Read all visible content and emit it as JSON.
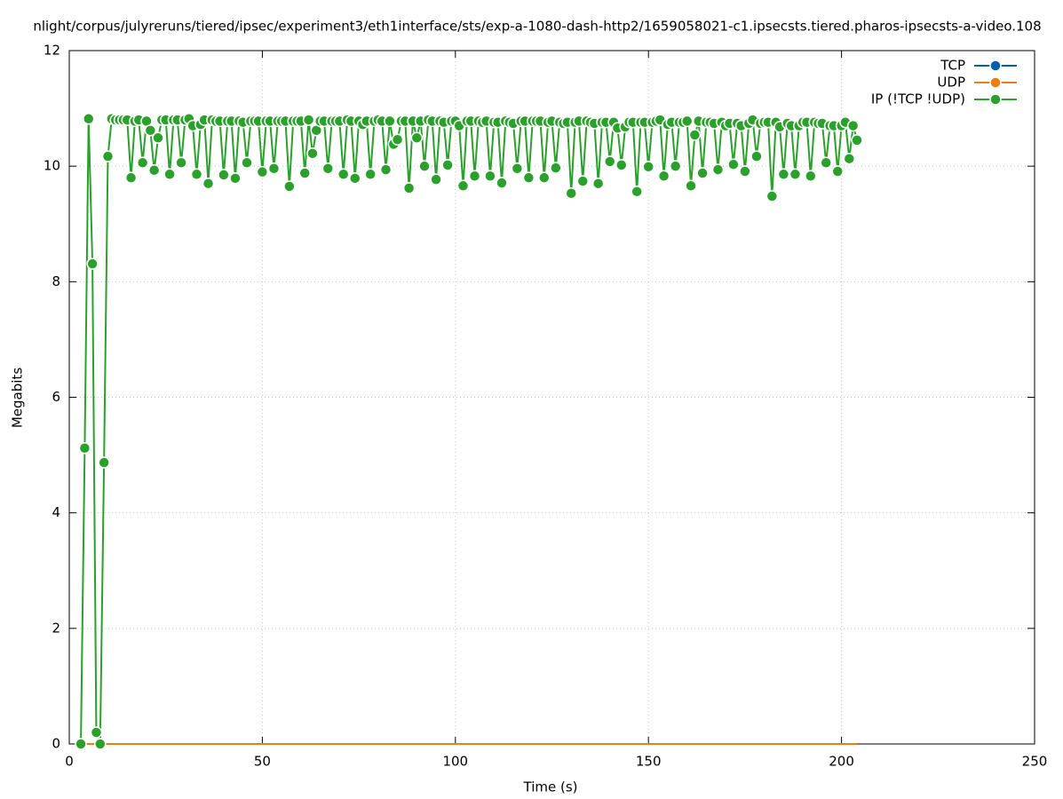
{
  "chart_data": {
    "type": "line",
    "title": "nlight/corpus/julyreruns/tiered/ipsec/experiment3/eth1interface/sts/exp-a-1080-dash-http2/1659058021-c1.ipsecsts.tiered.pharos-ipsecsts-a-video.108",
    "xlabel": "Time (s)",
    "ylabel": "Megabits",
    "xlim": [
      0,
      250
    ],
    "xticks": [
      0,
      50,
      100,
      150,
      200,
      250
    ],
    "ylim": [
      0,
      12
    ],
    "yticks": [
      0,
      2,
      4,
      6,
      8,
      10,
      12
    ],
    "grid": true,
    "legend": "top-right",
    "x": [
      3,
      4,
      5,
      6,
      7,
      8,
      9,
      10,
      11,
      12,
      13,
      14,
      15,
      16,
      17,
      18,
      19,
      20,
      21,
      22,
      23,
      24,
      25,
      26,
      27,
      28,
      29,
      30,
      31,
      32,
      33,
      34,
      35,
      36,
      37,
      38,
      39,
      40,
      41,
      42,
      43,
      44,
      45,
      46,
      47,
      48,
      49,
      50,
      51,
      52,
      53,
      54,
      55,
      56,
      57,
      58,
      59,
      60,
      61,
      62,
      63,
      64,
      65,
      66,
      67,
      68,
      69,
      70,
      71,
      72,
      73,
      74,
      75,
      76,
      77,
      78,
      79,
      80,
      81,
      82,
      83,
      84,
      85,
      86,
      87,
      88,
      89,
      90,
      91,
      92,
      93,
      94,
      95,
      96,
      97,
      98,
      99,
      100,
      101,
      102,
      103,
      104,
      105,
      106,
      107,
      108,
      109,
      110,
      111,
      112,
      113,
      114,
      115,
      116,
      117,
      118,
      119,
      120,
      121,
      122,
      123,
      124,
      125,
      126,
      127,
      128,
      129,
      130,
      131,
      132,
      133,
      134,
      135,
      136,
      137,
      138,
      139,
      140,
      141,
      142,
      143,
      144,
      145,
      146,
      147,
      148,
      149,
      150,
      151,
      152,
      153,
      154,
      155,
      156,
      157,
      158,
      159,
      160,
      161,
      162,
      163,
      164,
      165,
      166,
      167,
      168,
      169,
      170,
      171,
      172,
      173,
      174,
      175,
      176,
      177,
      178,
      179,
      180,
      181,
      182,
      183,
      184,
      185,
      186,
      187,
      188,
      189,
      190,
      191,
      192,
      193,
      194,
      195,
      196,
      197,
      198,
      199,
      200,
      201,
      202,
      203,
      204
    ],
    "series": [
      {
        "name": "TCP",
        "color": "#0060ad",
        "points": false,
        "values": [
          0,
          0,
          0,
          0,
          0,
          0,
          0,
          0,
          0,
          0,
          0,
          0,
          0,
          0,
          0,
          0,
          0,
          0,
          0,
          0,
          0,
          0,
          0,
          0,
          0,
          0,
          0,
          0,
          0,
          0,
          0,
          0,
          0,
          0,
          0,
          0,
          0,
          0,
          0,
          0,
          0,
          0,
          0,
          0,
          0,
          0,
          0,
          0,
          0,
          0,
          0,
          0,
          0,
          0,
          0,
          0,
          0,
          0,
          0,
          0,
          0,
          0,
          0,
          0,
          0,
          0,
          0,
          0,
          0,
          0,
          0,
          0,
          0,
          0,
          0,
          0,
          0,
          0,
          0,
          0,
          0,
          0,
          0,
          0,
          0,
          0,
          0,
          0,
          0,
          0,
          0,
          0,
          0,
          0,
          0,
          0,
          0,
          0,
          0,
          0,
          0,
          0,
          0,
          0,
          0,
          0,
          0,
          0,
          0,
          0,
          0,
          0,
          0,
          0,
          0,
          0,
          0,
          0,
          0,
          0,
          0,
          0,
          0,
          0,
          0,
          0,
          0,
          0,
          0,
          0,
          0,
          0,
          0,
          0,
          0,
          0,
          0,
          0,
          0,
          0,
          0,
          0,
          0,
          0,
          0,
          0,
          0,
          0,
          0,
          0,
          0,
          0,
          0,
          0,
          0,
          0,
          0,
          0,
          0,
          0,
          0,
          0,
          0,
          0,
          0,
          0,
          0,
          0,
          0,
          0,
          0,
          0,
          0,
          0,
          0,
          0,
          0,
          0,
          0,
          0,
          0,
          0,
          0,
          0,
          0,
          0,
          0,
          0,
          0,
          0,
          0,
          0,
          0,
          0,
          0,
          0,
          0,
          0,
          0,
          0,
          0,
          0
        ]
      },
      {
        "name": "UDP",
        "color": "#ef7d13",
        "points": false,
        "values": [
          0,
          0,
          0,
          0,
          0,
          0,
          0,
          0,
          0,
          0,
          0,
          0,
          0,
          0,
          0,
          0,
          0,
          0,
          0,
          0,
          0,
          0,
          0,
          0,
          0,
          0,
          0,
          0,
          0,
          0,
          0,
          0,
          0,
          0,
          0,
          0,
          0,
          0,
          0,
          0,
          0,
          0,
          0,
          0,
          0,
          0,
          0,
          0,
          0,
          0,
          0,
          0,
          0,
          0,
          0,
          0,
          0,
          0,
          0,
          0,
          0,
          0,
          0,
          0,
          0,
          0,
          0,
          0,
          0,
          0,
          0,
          0,
          0,
          0,
          0,
          0,
          0,
          0,
          0,
          0,
          0,
          0,
          0,
          0,
          0,
          0,
          0,
          0,
          0,
          0,
          0,
          0,
          0,
          0,
          0,
          0,
          0,
          0,
          0,
          0,
          0,
          0,
          0,
          0,
          0,
          0,
          0,
          0,
          0,
          0,
          0,
          0,
          0,
          0,
          0,
          0,
          0,
          0,
          0,
          0,
          0,
          0,
          0,
          0,
          0,
          0,
          0,
          0,
          0,
          0,
          0,
          0,
          0,
          0,
          0,
          0,
          0,
          0,
          0,
          0,
          0,
          0,
          0,
          0,
          0,
          0,
          0,
          0,
          0,
          0,
          0,
          0,
          0,
          0,
          0,
          0,
          0,
          0,
          0,
          0,
          0,
          0,
          0,
          0,
          0,
          0,
          0,
          0,
          0,
          0,
          0,
          0,
          0,
          0,
          0,
          0,
          0,
          0,
          0,
          0,
          0,
          0,
          0,
          0,
          0,
          0,
          0,
          0,
          0,
          0,
          0,
          0,
          0,
          0,
          0,
          0,
          0,
          0,
          0,
          0,
          0,
          0
        ]
      },
      {
        "name": "IP (!TCP  !UDP)",
        "color": "#2ca02c",
        "points": true,
        "values": [
          0,
          5.12,
          10.82,
          8.31,
          0.2,
          0,
          4.87,
          10.17,
          10.82,
          10.8,
          10.8,
          10.8,
          10.8,
          9.8,
          10.78,
          10.8,
          10.06,
          10.78,
          10.62,
          9.93,
          10.49,
          10.8,
          10.8,
          9.86,
          10.8,
          10.8,
          10.06,
          10.8,
          10.82,
          10.7,
          9.86,
          10.72,
          10.8,
          9.7,
          10.8,
          10.78,
          10.78,
          9.85,
          10.78,
          10.78,
          9.79,
          10.78,
          10.76,
          10.06,
          10.78,
          10.78,
          10.78,
          9.9,
          10.78,
          10.78,
          9.96,
          10.78,
          10.78,
          10.78,
          9.65,
          10.78,
          10.78,
          10.78,
          9.88,
          10.8,
          10.22,
          10.62,
          10.78,
          10.78,
          9.96,
          10.78,
          10.78,
          10.78,
          9.86,
          10.8,
          10.78,
          9.79,
          10.78,
          10.72,
          10.78,
          9.86,
          10.78,
          10.8,
          10.78,
          9.94,
          10.78,
          10.38,
          10.46,
          10.78,
          10.78,
          9.62,
          10.78,
          10.49,
          10.78,
          10.0,
          10.8,
          10.78,
          9.77,
          10.78,
          10.76,
          10.02,
          10.78,
          10.78,
          10.7,
          9.66,
          10.78,
          10.78,
          9.83,
          10.78,
          10.76,
          10.78,
          9.83,
          10.76,
          10.76,
          9.71,
          10.78,
          10.76,
          10.74,
          9.96,
          10.78,
          10.78,
          9.8,
          10.78,
          10.78,
          10.78,
          9.8,
          10.76,
          10.78,
          9.97,
          10.76,
          10.74,
          10.76,
          9.53,
          10.76,
          10.78,
          9.74,
          10.78,
          10.76,
          10.74,
          9.7,
          10.76,
          10.76,
          10.08,
          10.76,
          10.66,
          10.02,
          10.68,
          10.76,
          10.76,
          9.56,
          10.76,
          10.76,
          9.99,
          10.76,
          10.78,
          10.8,
          9.83,
          10.72,
          10.76,
          10.0,
          10.76,
          10.76,
          10.78,
          9.66,
          10.54,
          10.78,
          9.88,
          10.76,
          10.76,
          10.74,
          9.94,
          10.76,
          10.7,
          10.74,
          10.03,
          10.74,
          10.7,
          9.91,
          10.74,
          10.8,
          10.17,
          10.74,
          10.76,
          10.76,
          9.48,
          10.76,
          10.68,
          9.86,
          10.74,
          10.7,
          9.86,
          10.7,
          10.76,
          10.76,
          9.83,
          10.76,
          10.74,
          10.74,
          10.06,
          10.7,
          10.7,
          9.91,
          10.7,
          10.76,
          10.13,
          10.7,
          10.45
        ]
      }
    ]
  }
}
